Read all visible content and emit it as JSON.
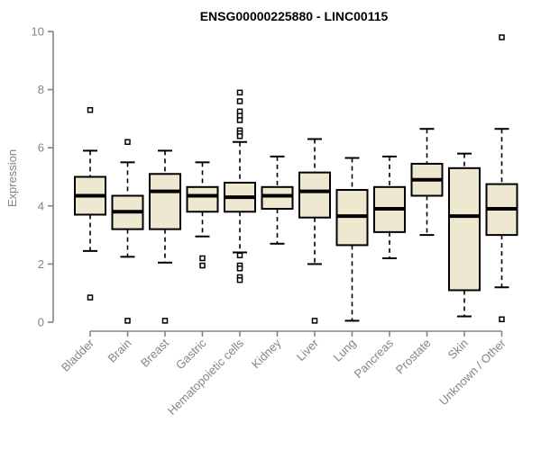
{
  "chart_data": {
    "type": "boxplot",
    "title": "ENSG00000225880 - LINC00115",
    "ylabel": "Expression",
    "xlabel": "",
    "ylim": [
      0,
      10
    ],
    "yticks": [
      0,
      2,
      4,
      6,
      8,
      10
    ],
    "grid": false,
    "legend": "none",
    "categories": [
      "Bladder",
      "Brain",
      "Breast",
      "Gastric",
      "Hematopoietic cells",
      "Kidney",
      "Liver",
      "Lung",
      "Pancreas",
      "Prostate",
      "Skin",
      "Unknown / Other"
    ],
    "series": [
      {
        "name": "Bladder",
        "whislo": 2.45,
        "q1": 3.7,
        "med": 4.35,
        "q3": 5.0,
        "whishi": 5.9,
        "outliers": [
          7.3,
          0.85
        ]
      },
      {
        "name": "Brain",
        "whislo": 2.25,
        "q1": 3.2,
        "med": 3.8,
        "q3": 4.35,
        "whishi": 5.5,
        "outliers": [
          6.2,
          0.05
        ]
      },
      {
        "name": "Breast",
        "whislo": 2.05,
        "q1": 3.2,
        "med": 4.5,
        "q3": 5.1,
        "whishi": 5.9,
        "outliers": [
          0.05
        ]
      },
      {
        "name": "Gastric",
        "whislo": 2.95,
        "q1": 3.8,
        "med": 4.35,
        "q3": 4.65,
        "whishi": 5.5,
        "outliers": [
          2.2,
          1.95
        ]
      },
      {
        "name": "Hematopoietic cells",
        "whislo": 2.4,
        "q1": 3.8,
        "med": 4.3,
        "q3": 4.8,
        "whishi": 6.2,
        "outliers": [
          7.9,
          7.6,
          7.25,
          7.1,
          6.95,
          6.6,
          6.5,
          6.4,
          2.3,
          1.95,
          1.85,
          1.55,
          1.45
        ]
      },
      {
        "name": "Kidney",
        "whislo": 2.7,
        "q1": 3.9,
        "med": 4.35,
        "q3": 4.65,
        "whishi": 5.7,
        "outliers": []
      },
      {
        "name": "Liver",
        "whislo": 2.0,
        "q1": 3.6,
        "med": 4.5,
        "q3": 5.15,
        "whishi": 6.3,
        "outliers": [
          0.05
        ]
      },
      {
        "name": "Lung",
        "whislo": 0.05,
        "q1": 2.65,
        "med": 3.65,
        "q3": 4.55,
        "whishi": 5.65,
        "outliers": []
      },
      {
        "name": "Pancreas",
        "whislo": 2.2,
        "q1": 3.1,
        "med": 3.9,
        "q3": 4.65,
        "whishi": 5.7,
        "outliers": []
      },
      {
        "name": "Prostate",
        "whislo": 3.0,
        "q1": 4.35,
        "med": 4.9,
        "q3": 5.45,
        "whishi": 6.65,
        "outliers": []
      },
      {
        "name": "Skin",
        "whislo": 0.2,
        "q1": 1.1,
        "med": 3.65,
        "q3": 5.3,
        "whishi": 5.8,
        "outliers": []
      },
      {
        "name": "Unknown / Other",
        "whislo": 1.2,
        "q1": 3.0,
        "med": 3.9,
        "q3": 4.75,
        "whishi": 6.65,
        "outliers": [
          9.8,
          0.1
        ]
      }
    ],
    "colors": {
      "box_fill": "#EDE8CF",
      "box_border": "#000000",
      "median": "#000000",
      "whisker": "#000000",
      "outlier_fill": "#ffffff",
      "axis": "#848484",
      "tick_label": "#848484",
      "title": "#000000"
    }
  }
}
